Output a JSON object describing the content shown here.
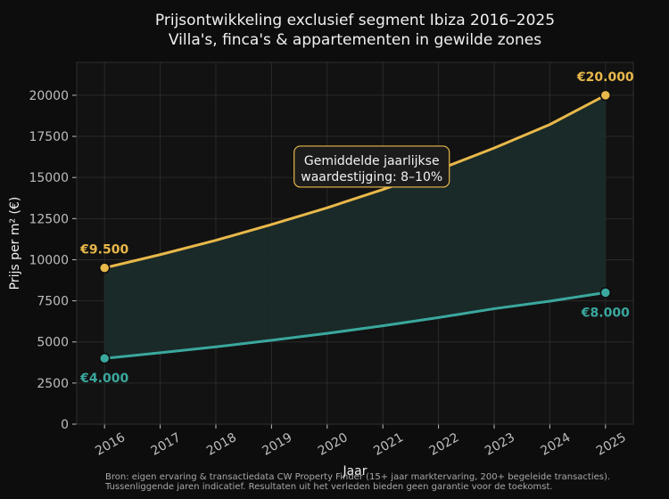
{
  "chart_data": {
    "type": "area",
    "title": [
      "Prijsontwikkeling exclusief segment Ibiza 2016–2025",
      "Villa's, finca's & appartementen in gewilde zones"
    ],
    "xlabel": "Jaar",
    "ylabel": "Prijs per m² (€)",
    "x": [
      2016,
      2017,
      2018,
      2019,
      2020,
      2021,
      2022,
      2023,
      2024,
      2025
    ],
    "xlim": [
      2015.5,
      2025.5
    ],
    "ylim": [
      0,
      22000
    ],
    "yticks": [
      0,
      2500,
      5000,
      7500,
      10000,
      12500,
      15000,
      17500,
      20000
    ],
    "grid": true,
    "series": [
      {
        "key": "upper",
        "color": "#e8b84a",
        "values": [
          9500,
          10310,
          11180,
          12140,
          13160,
          14270,
          15480,
          16790,
          18220,
          20000
        ],
        "endpoint_labels": [
          {
            "x": 2016,
            "y": 9500,
            "text": "€9.500",
            "position": "above-left"
          },
          {
            "x": 2025,
            "y": 20000,
            "text": "€20.000",
            "position": "above"
          }
        ]
      },
      {
        "key": "lower",
        "color": "#3aa89e",
        "values": [
          4000,
          4340,
          4700,
          5100,
          5520,
          5980,
          6480,
          7020,
          7480,
          8000
        ],
        "endpoint_labels": [
          {
            "x": 2016,
            "y": 4000,
            "text": "€4.000",
            "position": "below"
          },
          {
            "x": 2025,
            "y": 8000,
            "text": "€8.000",
            "position": "below"
          }
        ]
      }
    ],
    "band_fill": "#1b2c2a",
    "annotation": {
      "lines": [
        "Gemiddelde jaarlijkse",
        "waardestijging: 8–10%"
      ],
      "x": 2020.8,
      "y": 15500,
      "border_color": "#e8b84a"
    },
    "source": [
      "Bron: eigen ervaring & transactiedata CW Property Finder (15+ jaar marktervaring, 200+ begeleide transacties).",
      "Tussenliggende jaren indicatief. Resultaten uit het verleden bieden geen garantie voor de toekomst."
    ]
  }
}
